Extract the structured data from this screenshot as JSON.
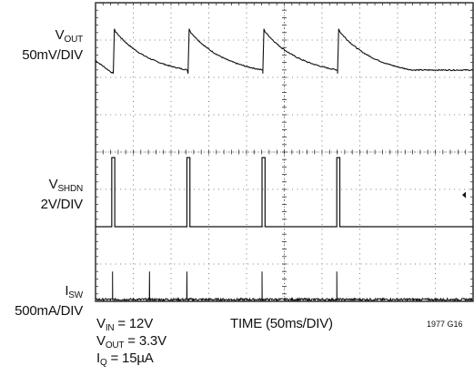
{
  "chart_data": {
    "type": "line",
    "x_divisions": 10,
    "y_divisions": 8,
    "x_per_div": "50ms",
    "traces": [
      {
        "name": "VOUT",
        "sub": "OUT",
        "main": "V",
        "scale": "50mV/DIV",
        "shape": "sawtooth",
        "peak_times_div": [
          0.47,
          2.45,
          4.43,
          6.41
        ],
        "peak_level_div": 7.3,
        "valley_level_div": 6.1,
        "start_level_div": 6.45
      },
      {
        "name": "VSHDN",
        "sub": "SHDN",
        "main": "V",
        "scale": "2V/DIV",
        "shape": "pulses",
        "pulse_times_div": [
          0.43,
          2.42,
          4.41,
          6.39
        ],
        "pulse_width_div": 0.08,
        "high_level_div": 3.85,
        "low_level_div": 2.0
      },
      {
        "name": "ISW",
        "sub": "SW",
        "main": "I",
        "scale": "500mA/DIV",
        "shape": "spikes",
        "spike_times_div": [
          0.45,
          1.43,
          2.42,
          4.41,
          6.39
        ],
        "spike_level_div": 0.8,
        "base_level_div": 0.05
      }
    ],
    "trigger_marker_level_div": 2.85
  },
  "labels": {
    "vout_main": "V",
    "vout_sub": "OUT",
    "vout_scale": "50mV/DIV",
    "vshdn_main": "V",
    "vshdn_sub": "SHDN",
    "vshdn_scale": "2V/DIV",
    "isw_main": "I",
    "isw_sub": "SW",
    "isw_scale": "500mA/DIV"
  },
  "footer": {
    "vin_main": "V",
    "vin_sub": "IN",
    "vin_value": " = 12V",
    "vout_main": "V",
    "vout_sub": "OUT",
    "vout_value": " = 3.3V",
    "iq_main": "I",
    "iq_sub": "Q",
    "iq_value": " = 15µA",
    "time_label": "TIME (50ms/DIV)",
    "figure_id": "1977 G16"
  }
}
